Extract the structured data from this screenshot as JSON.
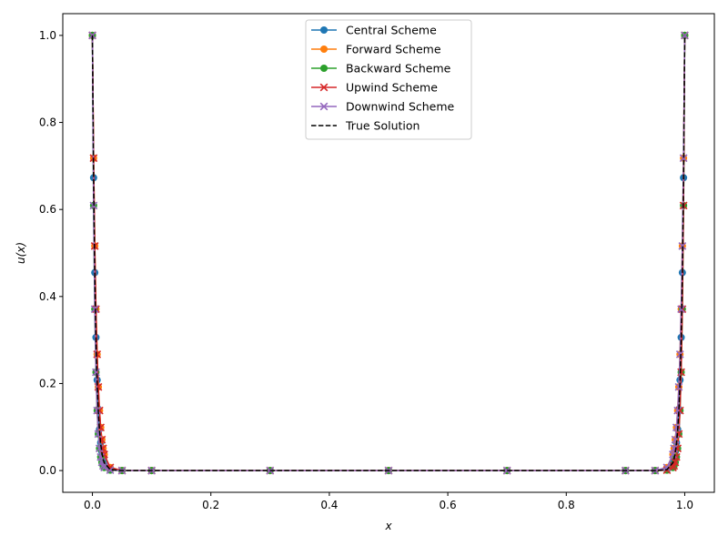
{
  "chart_data": {
    "type": "line",
    "title": "",
    "xlabel": "x",
    "ylabel": "u(x)",
    "xlim": [
      -0.05,
      1.05
    ],
    "ylim": [
      -0.05,
      1.05
    ],
    "xticks": [
      0.0,
      0.2,
      0.4,
      0.6,
      0.8,
      1.0
    ],
    "xtick_labels": [
      "0.0",
      "0.2",
      "0.4",
      "0.6",
      "0.8",
      "1.0"
    ],
    "yticks": [
      0.0,
      0.2,
      0.4,
      0.6,
      0.8,
      1.0
    ],
    "ytick_labels": [
      "0.0",
      "0.2",
      "0.4",
      "0.6",
      "0.8",
      "1.0"
    ],
    "grid": false,
    "legend_position": "top-center",
    "series": [
      {
        "name": "Central Scheme",
        "color": "#1f77b4",
        "marker": "circle",
        "linestyle": "solid",
        "x": [
          0.0,
          0.002,
          0.004,
          0.006,
          0.008,
          0.01,
          0.012,
          0.014,
          0.016,
          0.018,
          0.02,
          0.03,
          0.05,
          0.1,
          0.3,
          0.5,
          0.7,
          0.9,
          0.95,
          0.97,
          0.98,
          0.982,
          0.984,
          0.986,
          0.988,
          0.99,
          0.992,
          0.994,
          0.996,
          0.998,
          1.0
        ],
        "y": [
          1.0,
          0.673,
          0.455,
          0.306,
          0.208,
          0.141,
          0.095,
          0.064,
          0.043,
          0.029,
          0.02,
          0.003,
          0.0,
          0.0,
          0.0,
          0.0,
          0.0,
          0.0,
          0.0,
          0.003,
          0.02,
          0.029,
          0.043,
          0.064,
          0.095,
          0.141,
          0.208,
          0.306,
          0.455,
          0.673,
          1.0
        ]
      },
      {
        "name": "Forward Scheme",
        "color": "#ff7f0e",
        "marker": "circle",
        "linestyle": "solid",
        "x": [
          0.0,
          0.002,
          0.004,
          0.006,
          0.008,
          0.01,
          0.012,
          0.014,
          0.016,
          0.018,
          0.02,
          0.03,
          0.05,
          0.1,
          0.3,
          0.5,
          0.7,
          0.9,
          0.95,
          0.97,
          0.98,
          0.982,
          0.984,
          0.986,
          0.988,
          0.99,
          0.992,
          0.994,
          0.996,
          0.998,
          1.0
        ],
        "y": [
          1.0,
          0.718,
          0.516,
          0.371,
          0.267,
          0.192,
          0.138,
          0.099,
          0.071,
          0.051,
          0.037,
          0.007,
          0.0,
          0.0,
          0.0,
          0.0,
          0.0,
          0.0,
          0.0,
          0.007,
          0.037,
          0.051,
          0.071,
          0.099,
          0.138,
          0.192,
          0.267,
          0.371,
          0.516,
          0.718,
          1.0
        ]
      },
      {
        "name": "Backward Scheme",
        "color": "#2ca02c",
        "marker": "circle",
        "linestyle": "solid",
        "x": [
          0.0,
          0.002,
          0.004,
          0.006,
          0.008,
          0.01,
          0.012,
          0.014,
          0.016,
          0.018,
          0.02,
          0.03,
          0.05,
          0.1,
          0.3,
          0.5,
          0.7,
          0.9,
          0.95,
          0.97,
          0.98,
          0.982,
          0.984,
          0.986,
          0.988,
          0.99,
          0.992,
          0.994,
          0.996,
          0.998,
          1.0
        ],
        "y": [
          1.0,
          0.609,
          0.371,
          0.226,
          0.138,
          0.084,
          0.051,
          0.031,
          0.019,
          0.011,
          0.007,
          0.001,
          0.0,
          0.0,
          0.0,
          0.0,
          0.0,
          0.0,
          0.0,
          0.001,
          0.007,
          0.011,
          0.019,
          0.031,
          0.051,
          0.084,
          0.138,
          0.226,
          0.371,
          0.609,
          1.0
        ]
      },
      {
        "name": "Upwind Scheme",
        "color": "#d62728",
        "marker": "x",
        "linestyle": "solid",
        "x": [
          0.0,
          0.002,
          0.004,
          0.006,
          0.008,
          0.01,
          0.012,
          0.014,
          0.016,
          0.018,
          0.02,
          0.03,
          0.05,
          0.1,
          0.3,
          0.5,
          0.7,
          0.9,
          0.95,
          0.97,
          0.98,
          0.982,
          0.984,
          0.986,
          0.988,
          0.99,
          0.992,
          0.994,
          0.996,
          0.998,
          1.0
        ],
        "y": [
          1.0,
          0.718,
          0.516,
          0.371,
          0.267,
          0.192,
          0.138,
          0.099,
          0.071,
          0.051,
          0.037,
          0.007,
          0.0,
          0.0,
          0.0,
          0.0,
          0.0,
          0.0,
          0.0,
          0.001,
          0.007,
          0.011,
          0.019,
          0.031,
          0.051,
          0.084,
          0.138,
          0.226,
          0.371,
          0.609,
          1.0
        ]
      },
      {
        "name": "Downwind Scheme",
        "color": "#9467bd",
        "marker": "x",
        "linestyle": "solid",
        "x": [
          0.0,
          0.002,
          0.004,
          0.006,
          0.008,
          0.01,
          0.012,
          0.014,
          0.016,
          0.018,
          0.02,
          0.03,
          0.05,
          0.1,
          0.3,
          0.5,
          0.7,
          0.9,
          0.95,
          0.97,
          0.98,
          0.982,
          0.984,
          0.986,
          0.988,
          0.99,
          0.992,
          0.994,
          0.996,
          0.998,
          1.0
        ],
        "y": [
          1.0,
          0.609,
          0.371,
          0.226,
          0.138,
          0.084,
          0.051,
          0.031,
          0.019,
          0.011,
          0.007,
          0.001,
          0.0,
          0.0,
          0.0,
          0.0,
          0.0,
          0.0,
          0.0,
          0.007,
          0.037,
          0.051,
          0.071,
          0.099,
          0.138,
          0.192,
          0.267,
          0.371,
          0.516,
          0.718,
          1.0
        ]
      },
      {
        "name": "True Solution",
        "color": "#000000",
        "marker": "none",
        "linestyle": "dashed",
        "x": [
          0.0,
          0.002,
          0.004,
          0.006,
          0.008,
          0.01,
          0.012,
          0.014,
          0.016,
          0.018,
          0.02,
          0.03,
          0.05,
          0.1,
          0.3,
          0.5,
          0.7,
          0.9,
          0.95,
          0.97,
          0.98,
          0.982,
          0.984,
          0.986,
          0.988,
          0.99,
          0.992,
          0.994,
          0.996,
          0.998,
          1.0
        ],
        "y": [
          1.0,
          0.67,
          0.449,
          0.301,
          0.202,
          0.135,
          0.091,
          0.061,
          0.041,
          0.027,
          0.018,
          0.002,
          0.0,
          0.0,
          0.0,
          0.0,
          0.0,
          0.0,
          0.0,
          0.002,
          0.018,
          0.027,
          0.041,
          0.061,
          0.091,
          0.135,
          0.202,
          0.301,
          0.449,
          0.67,
          1.0
        ]
      }
    ]
  }
}
